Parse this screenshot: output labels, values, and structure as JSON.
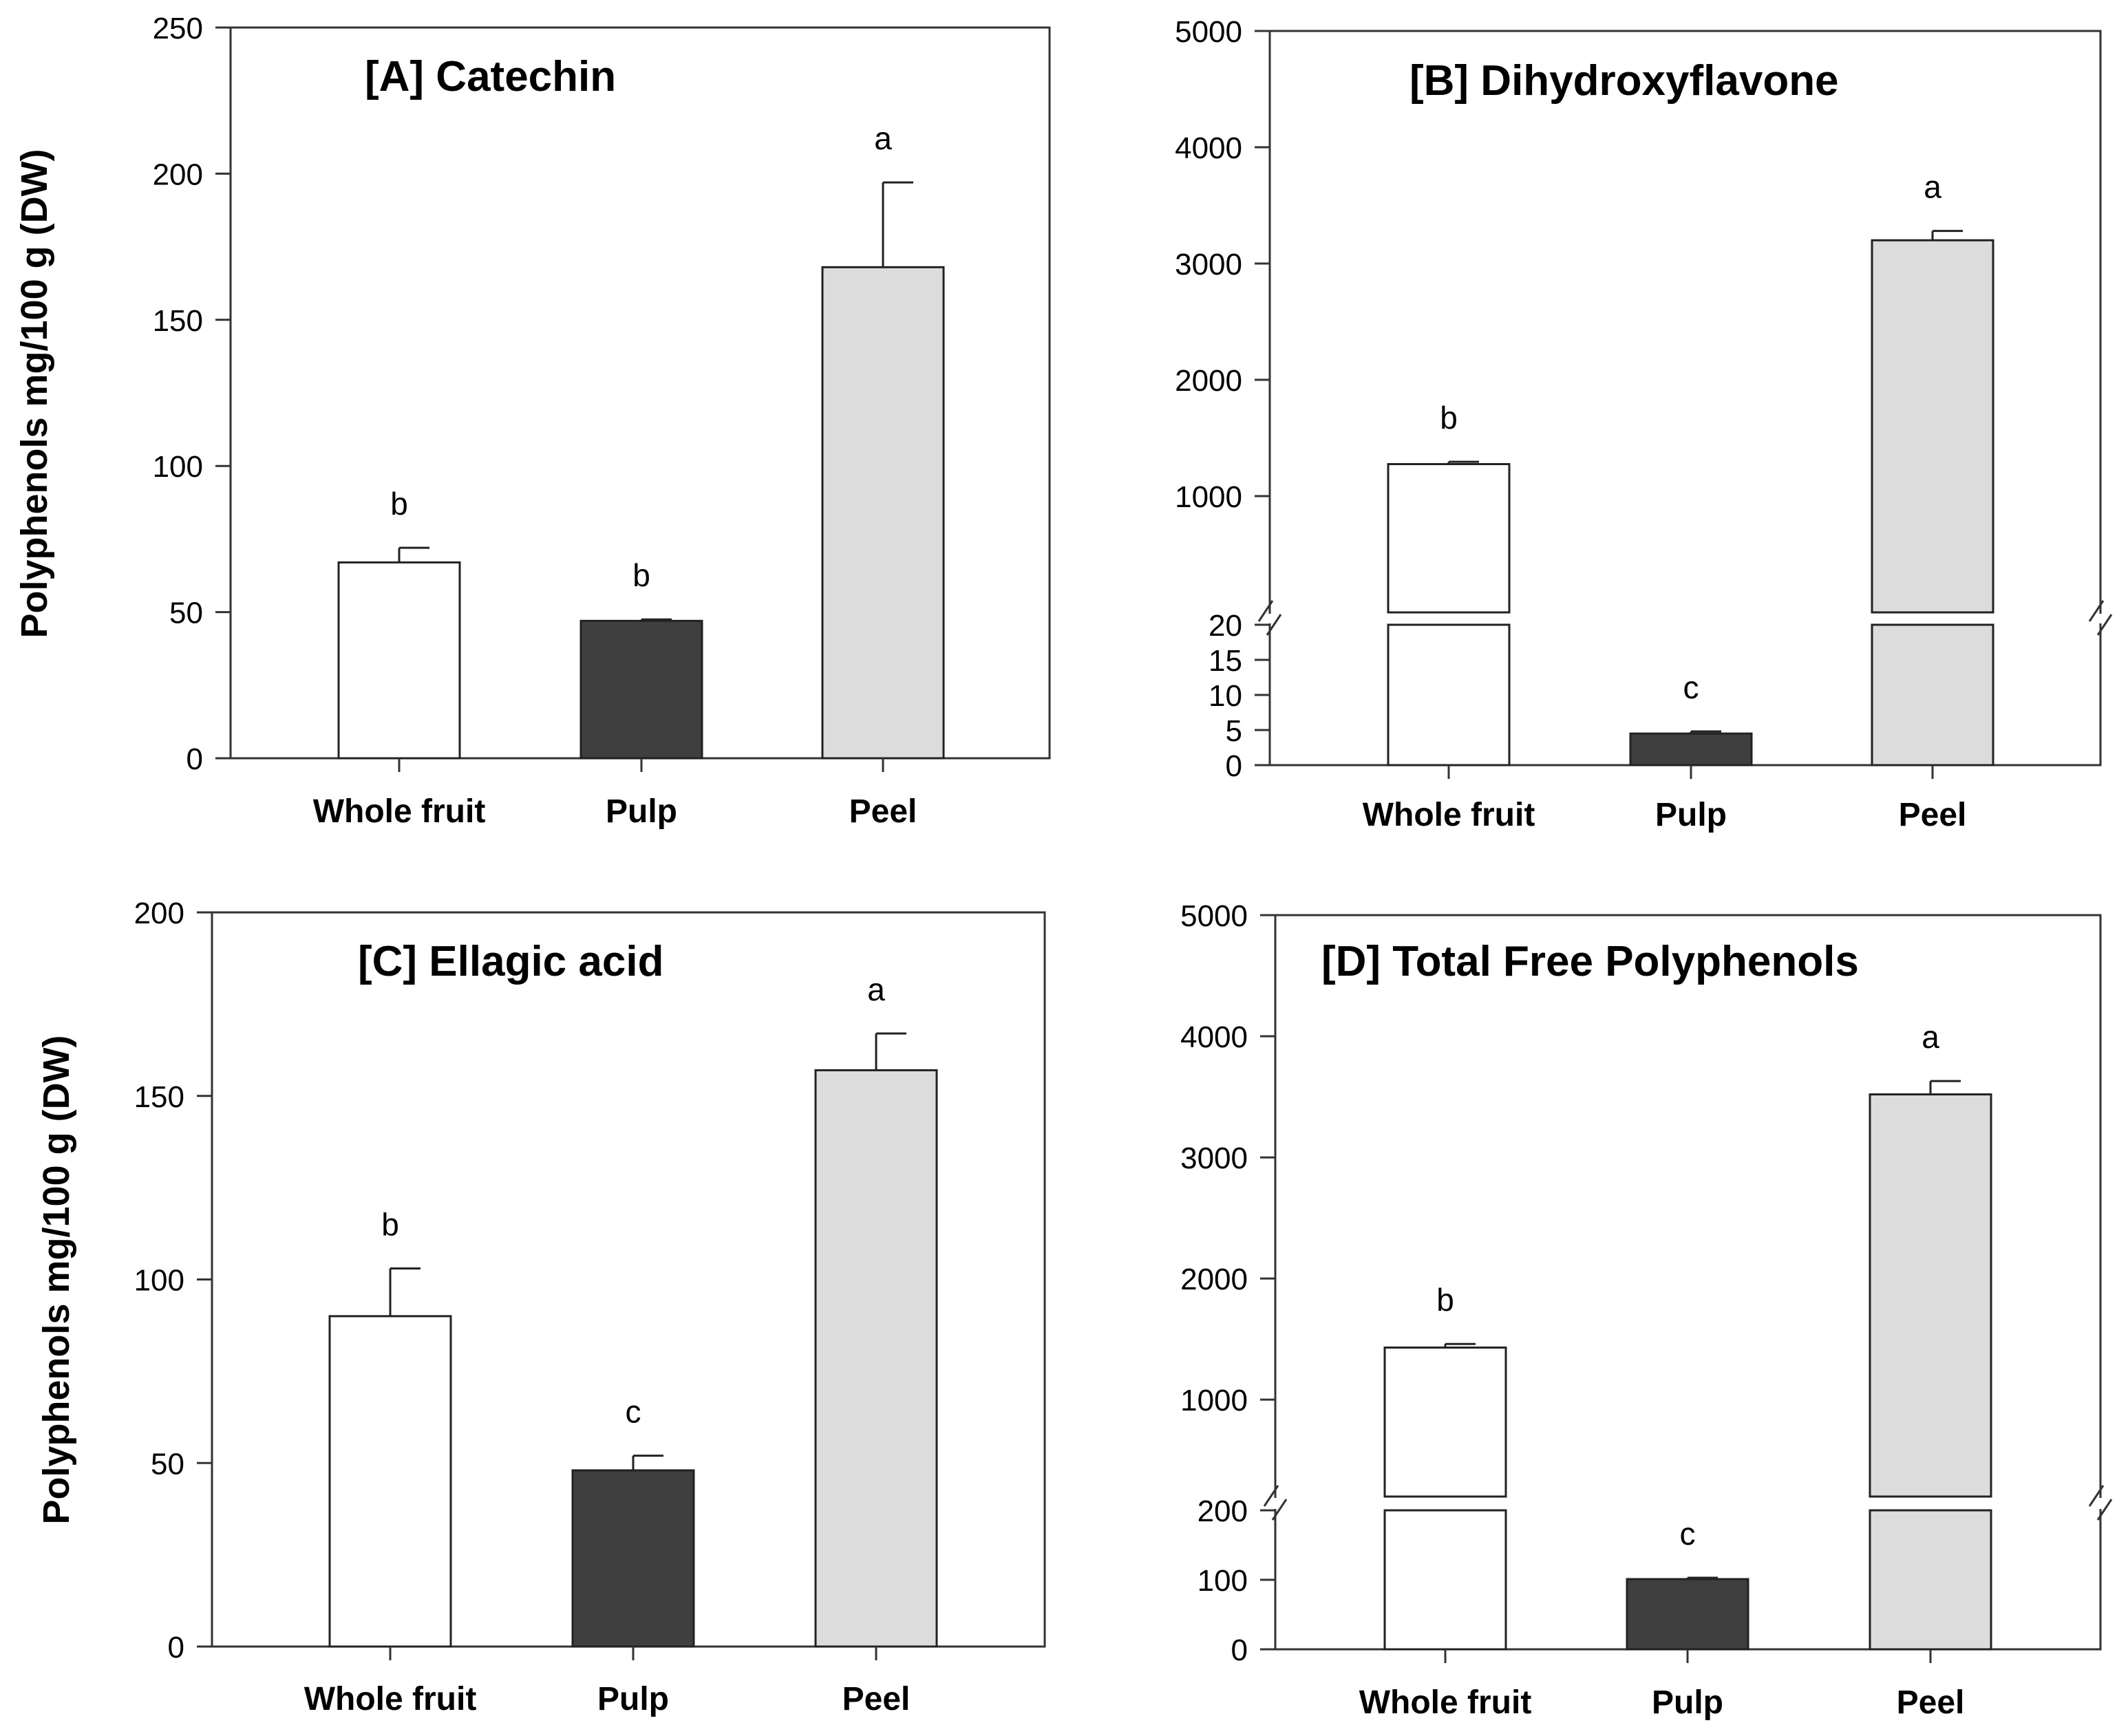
{
  "chart_data": [
    {
      "id": "A",
      "type": "bar",
      "title": "[A]  Catechin",
      "ylabel": "Polyphenols mg/100 g (DW)",
      "xlabel": "",
      "categories": [
        "Whole fruit",
        "Pulp",
        "Peel"
      ],
      "values": [
        67,
        47,
        168
      ],
      "errors": [
        5,
        0.5,
        29
      ],
      "significance": [
        "b",
        "b",
        "a"
      ],
      "ylim": [
        0,
        250
      ],
      "yticks": [
        "0",
        "50",
        "100",
        "150",
        "200",
        "250"
      ],
      "broken_axis": false,
      "colors": [
        "#ffffff",
        "#3f3f3f",
        "#dcdcdc"
      ]
    },
    {
      "id": "B",
      "type": "bar",
      "title": "[B]  Dihydroxyflavone",
      "ylabel": "",
      "xlabel": "",
      "categories": [
        "Whole fruit",
        "Pulp",
        "Peel"
      ],
      "values": [
        1275,
        4.5,
        3200
      ],
      "errors": [
        20,
        0.3,
        80
      ],
      "significance": [
        "b",
        "c",
        "a"
      ],
      "broken_axis": true,
      "lower_range": [
        0,
        20
      ],
      "lower_ticks": [
        "0",
        "5",
        "10",
        "15",
        "20"
      ],
      "upper_range": [
        0,
        5000
      ],
      "upper_ticks": [
        "1000",
        "2000",
        "3000",
        "4000",
        "5000"
      ],
      "colors": [
        "#ffffff",
        "#3f3f3f",
        "#dcdcdc"
      ]
    },
    {
      "id": "C",
      "type": "bar",
      "title": "[C]  Ellagic acid",
      "ylabel": "Polyphenols mg/100 g (DW)",
      "xlabel": "",
      "categories": [
        "Whole fruit",
        "Pulp",
        "Peel"
      ],
      "values": [
        90,
        48,
        157
      ],
      "errors": [
        13,
        4,
        10
      ],
      "significance": [
        "b",
        "c",
        "a"
      ],
      "ylim": [
        0,
        200
      ],
      "yticks": [
        "0",
        "50",
        "100",
        "150",
        "200"
      ],
      "broken_axis": false,
      "colors": [
        "#ffffff",
        "#3f3f3f",
        "#dcdcdc"
      ]
    },
    {
      "id": "D",
      "type": "bar",
      "title": "[D]  Total Free Polyphenols",
      "ylabel": "",
      "xlabel": "",
      "categories": [
        "Whole fruit",
        "Pulp",
        "Peel"
      ],
      "values": [
        1430,
        101,
        3520
      ],
      "errors": [
        30,
        2,
        110
      ],
      "significance": [
        "b",
        "c",
        "a"
      ],
      "broken_axis": true,
      "lower_range": [
        0,
        200
      ],
      "lower_ticks": [
        "0",
        "100",
        "200"
      ],
      "upper_range": [
        200,
        5000
      ],
      "upper_ticks": [
        "1000",
        "2000",
        "3000",
        "4000",
        "5000"
      ],
      "colors": [
        "#ffffff",
        "#3f3f3f",
        "#dcdcdc"
      ]
    }
  ]
}
